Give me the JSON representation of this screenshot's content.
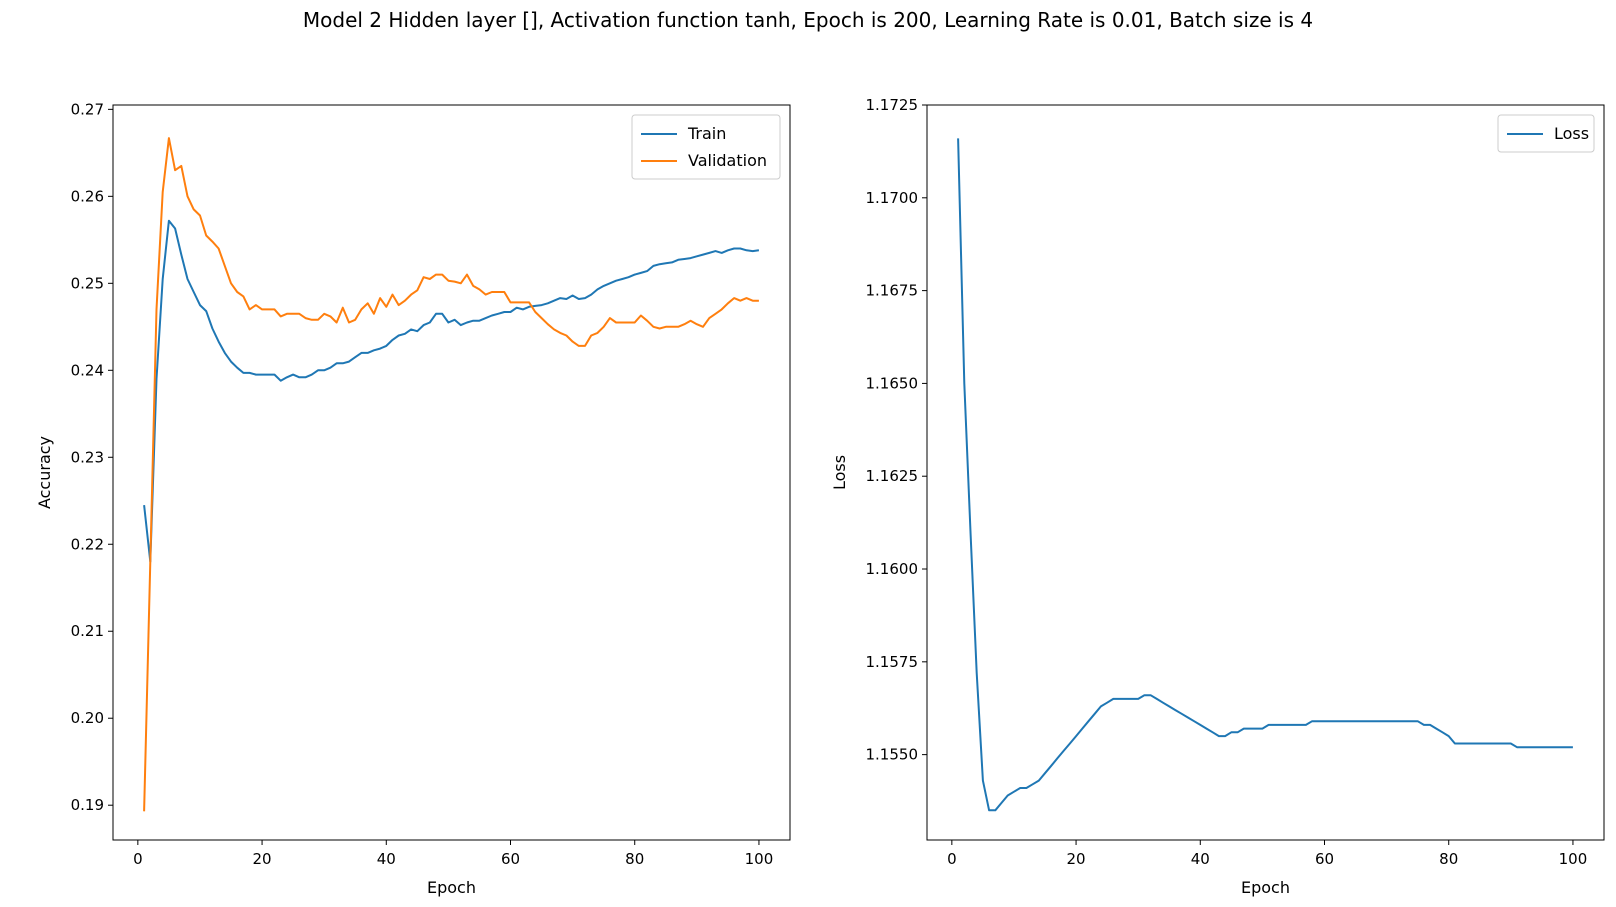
{
  "figure": {
    "title": "Model 2 Hidden layer [], Activation function tanh, Epoch is 200, Learning Rate is 0.01, Batch size is 4"
  },
  "colors": {
    "train": "#1f77b4",
    "validation": "#ff7f0e",
    "loss": "#1f77b4"
  },
  "chart_data": [
    {
      "type": "line",
      "title": "",
      "xlabel": "Epoch",
      "ylabel": "Accuracy",
      "xlim": [
        -4,
        105
      ],
      "ylim": [
        0.186,
        0.2705
      ],
      "xticks": [
        0,
        20,
        40,
        60,
        80,
        100
      ],
      "yticks": [
        0.19,
        0.2,
        0.21,
        0.22,
        0.23,
        0.24,
        0.25,
        0.26,
        0.27
      ],
      "ytick_labels": [
        "0.19",
        "0.20",
        "0.21",
        "0.22",
        "0.23",
        "0.24",
        "0.25",
        "0.26",
        "0.27"
      ],
      "grid": false,
      "legend": "top-right",
      "series": [
        {
          "name": "Train",
          "x": [
            1,
            2,
            3,
            4,
            5,
            6,
            7,
            8,
            9,
            10,
            11,
            12,
            13,
            14,
            15,
            16,
            17,
            18,
            19,
            20,
            21,
            22,
            23,
            24,
            25,
            26,
            27,
            28,
            29,
            30,
            31,
            32,
            33,
            34,
            35,
            36,
            37,
            38,
            39,
            40,
            41,
            42,
            43,
            44,
            45,
            46,
            47,
            48,
            49,
            50,
            51,
            52,
            53,
            54,
            55,
            56,
            57,
            58,
            59,
            60,
            61,
            62,
            63,
            64,
            65,
            66,
            67,
            68,
            69,
            70,
            71,
            72,
            73,
            74,
            75,
            76,
            77,
            78,
            79,
            80,
            81,
            82,
            83,
            84,
            85,
            86,
            87,
            88,
            89,
            90,
            91,
            92,
            93,
            94,
            95,
            96,
            97,
            98,
            99,
            100
          ],
          "values": [
            0.2245,
            0.218,
            0.239,
            0.2505,
            0.2572,
            0.2563,
            0.2533,
            0.2505,
            0.249,
            0.2475,
            0.2468,
            0.2448,
            0.2433,
            0.242,
            0.241,
            0.2403,
            0.2397,
            0.2397,
            0.2395,
            0.2395,
            0.2395,
            0.2395,
            0.2388,
            0.2392,
            0.2395,
            0.2392,
            0.2392,
            0.2395,
            0.24,
            0.24,
            0.2403,
            0.2408,
            0.2408,
            0.241,
            0.2415,
            0.242,
            0.242,
            0.2423,
            0.2425,
            0.2428,
            0.2435,
            0.244,
            0.2442,
            0.2447,
            0.2445,
            0.2452,
            0.2455,
            0.2465,
            0.2465,
            0.2455,
            0.2458,
            0.2452,
            0.2455,
            0.2457,
            0.2457,
            0.246,
            0.2463,
            0.2465,
            0.2467,
            0.2467,
            0.2472,
            0.247,
            0.2473,
            0.2474,
            0.2475,
            0.2477,
            0.248,
            0.2483,
            0.2482,
            0.2486,
            0.2482,
            0.2483,
            0.2487,
            0.2493,
            0.2497,
            0.25,
            0.2503,
            0.2505,
            0.2507,
            0.251,
            0.2512,
            0.2514,
            0.252,
            0.2522,
            0.2523,
            0.2524,
            0.2527,
            0.2528,
            0.2529,
            0.2531,
            0.2533,
            0.2535,
            0.2537,
            0.2535,
            0.2538,
            0.254,
            0.254,
            0.2538,
            0.2537,
            0.2538
          ]
        },
        {
          "name": "Validation",
          "x": [
            1,
            2,
            3,
            4,
            5,
            6,
            7,
            8,
            9,
            10,
            11,
            12,
            13,
            14,
            15,
            16,
            17,
            18,
            19,
            20,
            21,
            22,
            23,
            24,
            25,
            26,
            27,
            28,
            29,
            30,
            31,
            32,
            33,
            34,
            35,
            36,
            37,
            38,
            39,
            40,
            41,
            42,
            43,
            44,
            45,
            46,
            47,
            48,
            49,
            50,
            51,
            52,
            53,
            54,
            55,
            56,
            57,
            58,
            59,
            60,
            61,
            62,
            63,
            64,
            65,
            66,
            67,
            68,
            69,
            70,
            71,
            72,
            73,
            74,
            75,
            76,
            77,
            78,
            79,
            80,
            81,
            82,
            83,
            84,
            85,
            86,
            87,
            88,
            89,
            90,
            91,
            92,
            93,
            94,
            95,
            96,
            97,
            98,
            99,
            100
          ],
          "values": [
            0.1893,
            0.218,
            0.247,
            0.2605,
            0.2667,
            0.263,
            0.2635,
            0.26,
            0.2585,
            0.2578,
            0.2555,
            0.2548,
            0.254,
            0.252,
            0.25,
            0.249,
            0.2485,
            0.247,
            0.2475,
            0.247,
            0.247,
            0.247,
            0.2462,
            0.2465,
            0.2465,
            0.2465,
            0.246,
            0.2458,
            0.2458,
            0.2465,
            0.2462,
            0.2455,
            0.2472,
            0.2455,
            0.2458,
            0.247,
            0.2477,
            0.2465,
            0.2483,
            0.2473,
            0.2487,
            0.2475,
            0.248,
            0.2487,
            0.2492,
            0.2507,
            0.2505,
            0.251,
            0.251,
            0.2503,
            0.2502,
            0.25,
            0.251,
            0.2497,
            0.2493,
            0.2487,
            0.249,
            0.249,
            0.249,
            0.2478,
            0.2478,
            0.2478,
            0.2478,
            0.2467,
            0.246,
            0.2453,
            0.2447,
            0.2443,
            0.244,
            0.2433,
            0.2428,
            0.2428,
            0.244,
            0.2443,
            0.245,
            0.246,
            0.2455,
            0.2455,
            0.2455,
            0.2455,
            0.2463,
            0.2457,
            0.245,
            0.2448,
            0.245,
            0.245,
            0.245,
            0.2453,
            0.2457,
            0.2453,
            0.245,
            0.246,
            0.2465,
            0.247,
            0.2477,
            0.2483,
            0.248,
            0.2483,
            0.248,
            0.248
          ]
        }
      ]
    },
    {
      "type": "line",
      "title": "",
      "xlabel": "Epoch",
      "ylabel": "Loss",
      "xlim": [
        -4,
        105
      ],
      "ylim": [
        1.1527,
        1.1725
      ],
      "xticks": [
        0,
        20,
        40,
        60,
        80,
        100
      ],
      "yticks": [
        1.155,
        1.1575,
        1.16,
        1.1625,
        1.165,
        1.1675,
        1.17,
        1.1725
      ],
      "ytick_labels": [
        "1.1550",
        "1.1575",
        "1.1600",
        "1.1625",
        "1.1650",
        "1.1675",
        "1.1700",
        "1.1725"
      ],
      "grid": false,
      "legend": "top-right",
      "series": [
        {
          "name": "Loss",
          "x": [
            1,
            2,
            3,
            4,
            5,
            6,
            7,
            8,
            9,
            10,
            11,
            12,
            13,
            14,
            15,
            16,
            17,
            18,
            19,
            20,
            21,
            22,
            23,
            24,
            25,
            26,
            27,
            28,
            29,
            30,
            31,
            32,
            33,
            34,
            35,
            36,
            37,
            38,
            39,
            40,
            41,
            42,
            43,
            44,
            45,
            46,
            47,
            48,
            49,
            50,
            51,
            52,
            53,
            54,
            55,
            56,
            57,
            58,
            59,
            60,
            61,
            62,
            63,
            64,
            65,
            66,
            67,
            68,
            69,
            70,
            71,
            72,
            73,
            74,
            75,
            76,
            77,
            78,
            79,
            80,
            81,
            82,
            83,
            84,
            85,
            86,
            87,
            88,
            89,
            90,
            91,
            92,
            93,
            94,
            95,
            96,
            97,
            98,
            99,
            100
          ],
          "values": [
            1.1716,
            1.165,
            1.161,
            1.1572,
            1.1543,
            1.1535,
            1.1535,
            1.1537,
            1.1539,
            1.154,
            1.1541,
            1.1541,
            1.1542,
            1.1543,
            1.1545,
            1.1547,
            1.1549,
            1.1551,
            1.1553,
            1.1555,
            1.1557,
            1.1559,
            1.1561,
            1.1563,
            1.1564,
            1.1565,
            1.1565,
            1.1565,
            1.1565,
            1.1565,
            1.1566,
            1.1566,
            1.1565,
            1.1564,
            1.1563,
            1.1562,
            1.1561,
            1.156,
            1.1559,
            1.1558,
            1.1557,
            1.1556,
            1.1555,
            1.1555,
            1.1556,
            1.1556,
            1.1557,
            1.1557,
            1.1557,
            1.1557,
            1.1558,
            1.1558,
            1.1558,
            1.1558,
            1.1558,
            1.1558,
            1.1558,
            1.1559,
            1.1559,
            1.1559,
            1.1559,
            1.1559,
            1.1559,
            1.1559,
            1.1559,
            1.1559,
            1.1559,
            1.1559,
            1.1559,
            1.1559,
            1.1559,
            1.1559,
            1.1559,
            1.1559,
            1.1559,
            1.1558,
            1.1558,
            1.1557,
            1.1556,
            1.1555,
            1.1553,
            1.1553,
            1.1553,
            1.1553,
            1.1553,
            1.1553,
            1.1553,
            1.1553,
            1.1553,
            1.1553,
            1.1552,
            1.1552,
            1.1552,
            1.1552,
            1.1552,
            1.1552,
            1.1552,
            1.1552,
            1.1552,
            1.1552
          ]
        }
      ]
    }
  ]
}
